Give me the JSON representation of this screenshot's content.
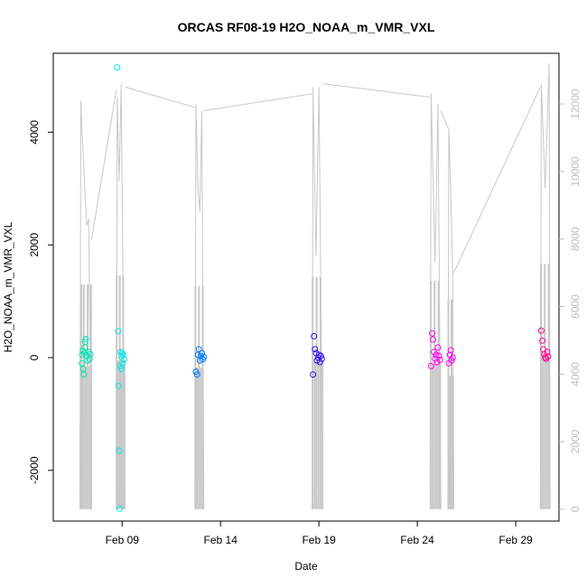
{
  "chart_data": {
    "type": "scatter",
    "title": "ORCAS RF08-19 H2O_NOAA_m_VMR_VXL",
    "xlabel": "Date",
    "ylabel": "H2O_NOAA_m_VMR_VXL",
    "x_ticks": [
      "Feb 09",
      "Feb 14",
      "Feb 19",
      "Feb 24",
      "Feb 29"
    ],
    "x_tick_days": [
      9,
      14,
      19,
      24,
      29
    ],
    "xlim_days": [
      5.5,
      31.2
    ],
    "y_ticks": [
      -2000,
      0,
      2000,
      4000
    ],
    "ylim": [
      -2900,
      5400
    ],
    "y2_ticks": [
      0,
      2000,
      4000,
      6000,
      8000,
      10000,
      12000
    ],
    "y2lim": [
      -350,
      13500
    ],
    "y2_color": "#bdbdbd",
    "grid": false,
    "series": [
      {
        "color": "#00e5b0",
        "points": [
          [
            6.95,
            -100
          ],
          [
            6.97,
            50
          ],
          [
            7.0,
            120
          ],
          [
            7.02,
            -200
          ],
          [
            7.05,
            -300
          ],
          [
            7.08,
            80
          ],
          [
            7.1,
            180
          ],
          [
            7.12,
            280
          ],
          [
            7.15,
            330
          ],
          [
            7.2,
            30
          ],
          [
            7.25,
            -50
          ],
          [
            7.3,
            100
          ],
          [
            7.35,
            -20
          ],
          [
            7.38,
            60
          ]
        ]
      },
      {
        "color": "#00e8e8",
        "points": [
          [
            8.75,
            5150
          ],
          [
            8.8,
            470
          ],
          [
            8.82,
            -500
          ],
          [
            8.85,
            -1650
          ],
          [
            8.87,
            -2680
          ],
          [
            8.9,
            -150
          ],
          [
            8.92,
            100
          ],
          [
            8.95,
            -200
          ],
          [
            8.97,
            20
          ],
          [
            9.0,
            80
          ],
          [
            9.02,
            -100
          ],
          [
            9.05,
            50
          ],
          [
            9.1,
            -30
          ]
        ]
      },
      {
        "color": "#007aff",
        "points": [
          [
            12.75,
            -250
          ],
          [
            12.8,
            -300
          ],
          [
            12.85,
            50
          ],
          [
            12.9,
            150
          ],
          [
            12.95,
            -50
          ],
          [
            13.0,
            30
          ],
          [
            13.05,
            80
          ],
          [
            13.1,
            -30
          ],
          [
            13.15,
            10
          ]
        ]
      },
      {
        "color": "#3010ee",
        "points": [
          [
            18.7,
            -300
          ],
          [
            18.75,
            380
          ],
          [
            18.8,
            150
          ],
          [
            18.85,
            80
          ],
          [
            18.9,
            -50
          ],
          [
            18.95,
            0
          ],
          [
            19.0,
            50
          ],
          [
            19.05,
            -80
          ],
          [
            19.1,
            30
          ],
          [
            19.15,
            -20
          ]
        ]
      },
      {
        "color": "#ff00ee",
        "points": [
          [
            24.7,
            -150
          ],
          [
            24.75,
            430
          ],
          [
            24.8,
            320
          ],
          [
            24.85,
            100
          ],
          [
            24.9,
            -20
          ],
          [
            24.95,
            50
          ],
          [
            25.0,
            -80
          ],
          [
            25.05,
            180
          ],
          [
            25.1,
            30
          ],
          [
            25.15,
            -40
          ],
          [
            25.6,
            -100
          ],
          [
            25.65,
            50
          ],
          [
            25.7,
            130
          ],
          [
            25.75,
            -50
          ],
          [
            25.8,
            0
          ]
        ]
      },
      {
        "color": "#ff0090",
        "points": [
          [
            30.3,
            480
          ],
          [
            30.35,
            300
          ],
          [
            30.4,
            150
          ],
          [
            30.45,
            60
          ],
          [
            30.5,
            0
          ],
          [
            30.55,
            -20
          ],
          [
            30.6,
            100
          ],
          [
            30.65,
            20
          ]
        ]
      }
    ],
    "altitude_series": {
      "color": "#c8c8c8",
      "axis": "right",
      "flights": [
        {
          "base": [
            6.85,
            7.45
          ],
          "top": 12100,
          "peaks": [
            [
              6.9,
              12100
            ],
            [
              7.0,
              10700
            ],
            [
              7.2,
              8400
            ],
            [
              7.3,
              8600
            ]
          ],
          "spikes": [
            6.92,
            6.98,
            7.05,
            7.15,
            7.25,
            7.35,
            7.42
          ]
        },
        {
          "base": [
            8.7,
            9.15
          ],
          "top": 12600,
          "peaks": [
            [
              8.75,
              12200
            ],
            [
              8.85,
              9700
            ],
            [
              8.95,
              12600
            ]
          ],
          "spikes": [
            8.72,
            8.8,
            8.88,
            8.96,
            9.05,
            9.12
          ]
        },
        {
          "base": [
            12.7,
            13.15
          ],
          "top": 12000,
          "peaks": [
            [
              12.75,
              12000
            ],
            [
              12.85,
              9500
            ],
            [
              12.95,
              8800
            ],
            [
              13.05,
              11800
            ]
          ],
          "spikes": [
            12.72,
            12.8,
            12.9,
            13.0,
            13.1
          ]
        },
        {
          "base": [
            18.65,
            19.2
          ],
          "top": 12500,
          "peaks": [
            [
              18.7,
              12500
            ],
            [
              18.85,
              7500
            ],
            [
              19.0,
              12500
            ]
          ],
          "spikes": [
            18.68,
            18.78,
            18.88,
            18.98,
            19.08,
            19.18
          ]
        },
        {
          "base": [
            24.65,
            25.2
          ],
          "top": 12300,
          "peaks": [
            [
              24.7,
              12300
            ],
            [
              24.9,
              7300
            ],
            [
              25.05,
              12000
            ]
          ],
          "spikes": [
            24.68,
            24.78,
            24.88,
            24.98,
            25.08,
            25.16
          ]
        },
        {
          "base": [
            25.55,
            25.85
          ],
          "top": 11300,
          "peaks": [
            [
              25.6,
              11300
            ],
            [
              25.7,
              9300
            ],
            [
              25.8,
              7000
            ]
          ],
          "spikes": [
            25.58,
            25.66,
            25.74,
            25.82
          ]
        },
        {
          "base": [
            30.25,
            30.75
          ],
          "top": 13200,
          "peaks": [
            [
              30.3,
              12600
            ],
            [
              30.5,
              9500
            ],
            [
              30.7,
              13200
            ]
          ],
          "spikes": [
            30.28,
            30.38,
            30.48,
            30.58,
            30.68
          ]
        }
      ],
      "connectors": [
        [
          7.45,
          8000
        ],
        [
          8.7,
          12400
        ],
        [
          9.15,
          12500
        ],
        [
          12.7,
          11900
        ],
        [
          13.15,
          11800
        ],
        [
          18.65,
          12300
        ],
        [
          19.2,
          12600
        ],
        [
          24.65,
          12200
        ],
        [
          25.2,
          11800
        ],
        [
          25.55,
          11300
        ],
        [
          25.85,
          7000
        ],
        [
          30.25,
          12500
        ]
      ]
    }
  }
}
